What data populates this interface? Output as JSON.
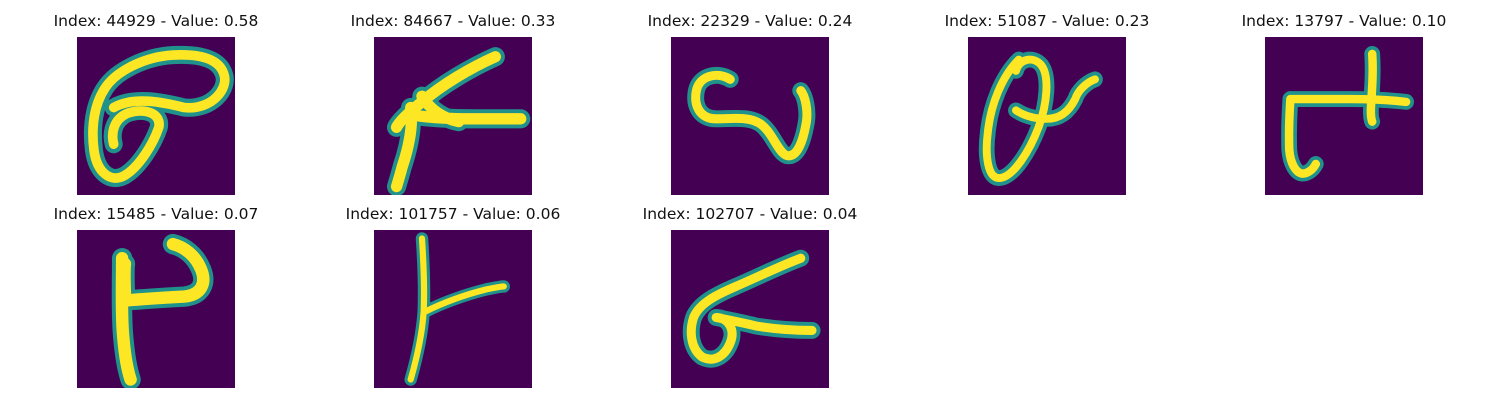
{
  "figure": {
    "colors": {
      "background": "#440154",
      "edge": "#21918c",
      "mid": "#5ec962",
      "stroke": "#fde725"
    },
    "panels": [
      {
        "title": "Index: 44929 - Value: 0.58",
        "index": 44929,
        "value": 0.58
      },
      {
        "title": "Index: 84667 - Value: 0.33",
        "index": 84667,
        "value": 0.33
      },
      {
        "title": "Index: 22329 - Value: 0.24",
        "index": 22329,
        "value": 0.24
      },
      {
        "title": "Index: 51087 - Value: 0.23",
        "index": 51087,
        "value": 0.23
      },
      {
        "title": "Index: 13797 - Value: 0.10",
        "index": 13797,
        "value": 0.1
      },
      {
        "title": "Index: 15485 - Value: 0.07",
        "index": 15485,
        "value": 0.07
      },
      {
        "title": "Index: 101757 - Value: 0.06",
        "index": 101757,
        "value": 0.06
      },
      {
        "title": "Index: 102707 - Value: 0.04",
        "index": 102707,
        "value": 0.04
      }
    ]
  }
}
